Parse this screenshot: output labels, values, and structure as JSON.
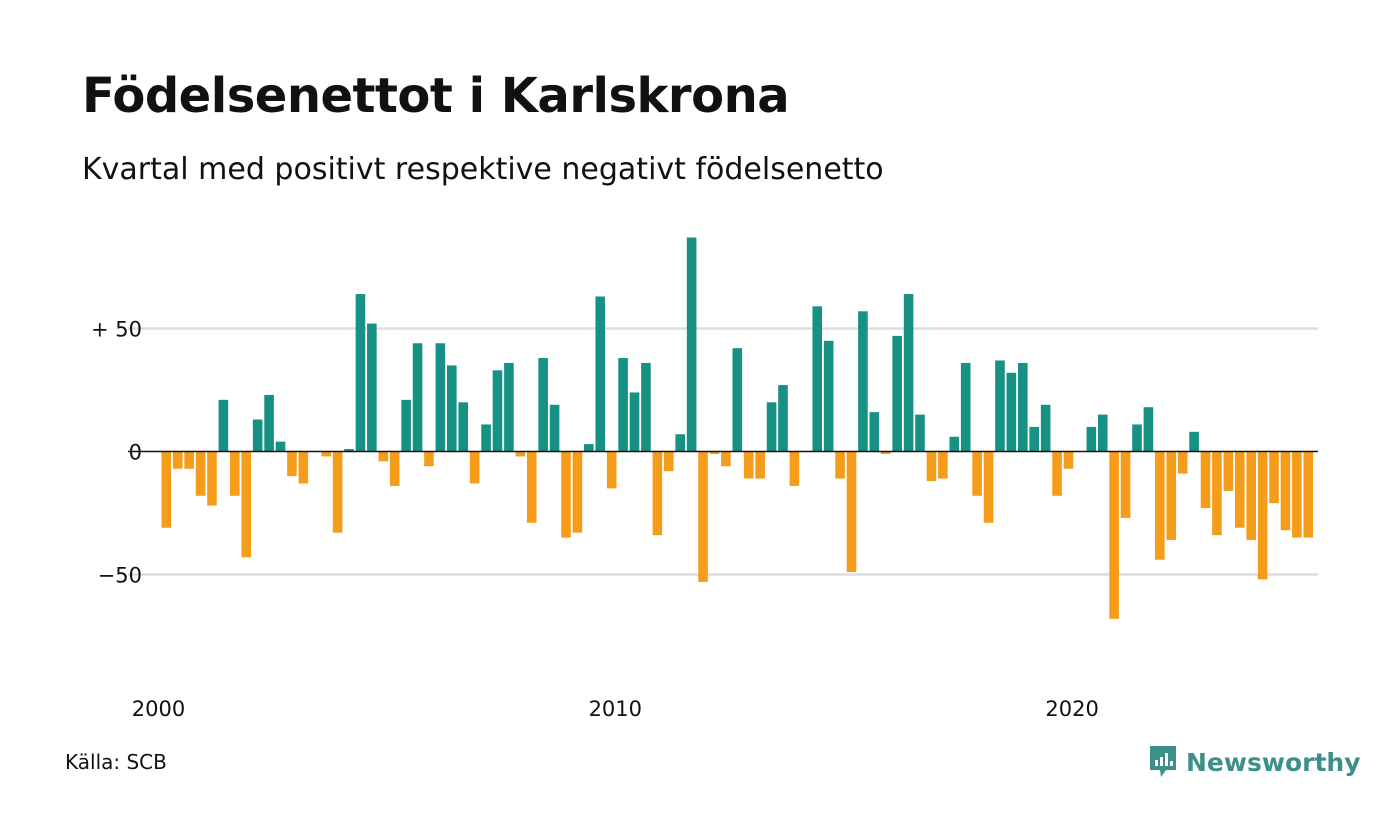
{
  "title": "Födelsenettot i Karlskrona",
  "subtitle": "Kvartal med positivt respektive negativt födelsenetto",
  "source": "Källa: SCB",
  "logo": {
    "text": "Newsworthy",
    "icon": "chat-bar-chart-icon"
  },
  "colors": {
    "positive": "#179183",
    "negative": "#f59d1b",
    "grid": "#dddddd",
    "axis": "#111111",
    "brand": "#3d8f8a"
  },
  "chart_data": {
    "type": "bar",
    "start": "2000 Q1",
    "frequency": "quarterly",
    "ylim": [
      -80,
      90
    ],
    "yticks": [
      {
        "value": 50,
        "label": "+ 50"
      },
      {
        "value": 0,
        "label": "0"
      },
      {
        "value": -50,
        "label": "−50"
      }
    ],
    "xticks": [
      {
        "label": "2000",
        "index": 0
      },
      {
        "label": "2010",
        "index": 40
      },
      {
        "label": "2020",
        "index": 80
      }
    ],
    "grid": true,
    "values": [
      -31,
      -7,
      -7,
      -18,
      -22,
      21,
      -18,
      -43,
      13,
      23,
      4,
      -10,
      -13,
      0,
      -2,
      -33,
      1,
      64,
      52,
      -4,
      -14,
      21,
      44,
      -6,
      44,
      35,
      20,
      -13,
      11,
      33,
      36,
      -2,
      -29,
      38,
      19,
      -35,
      -33,
      3,
      63,
      -15,
      38,
      24,
      36,
      -34,
      -8,
      7,
      87,
      -53,
      -1,
      -6,
      42,
      -11,
      -11,
      20,
      27,
      -14,
      0,
      59,
      45,
      -11,
      -49,
      57,
      16,
      -1,
      47,
      64,
      15,
      -12,
      -11,
      6,
      36,
      -18,
      -29,
      37,
      32,
      36,
      10,
      19,
      -18,
      -7,
      0,
      10,
      15,
      -68,
      -27,
      11,
      18,
      -44,
      -36,
      -9,
      8,
      -23,
      -34,
      -16,
      -31,
      -36,
      -52,
      -21,
      -32,
      -35,
      -35
    ]
  }
}
